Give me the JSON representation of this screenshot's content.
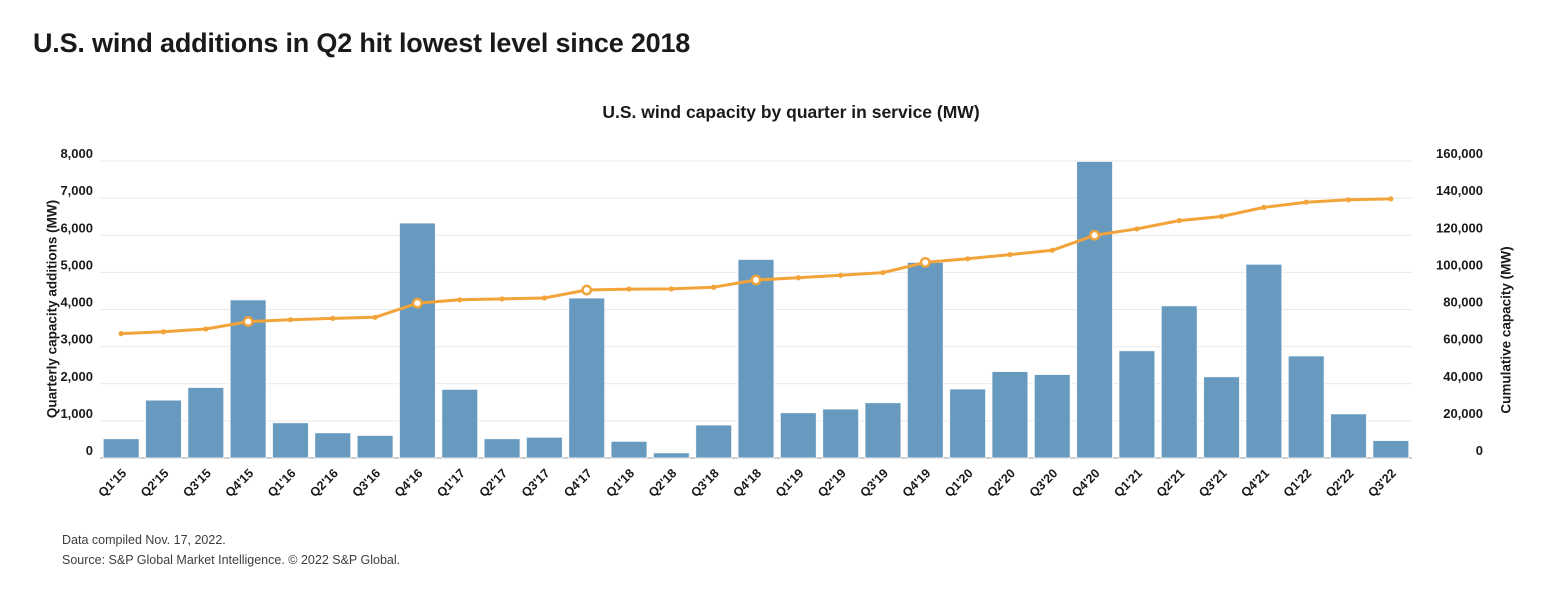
{
  "page": {
    "title": "U.S. wind additions in Q2 hit lowest level since 2018"
  },
  "chart_data": {
    "type": "bar",
    "subtype": "combo-bar-line-dual-axis",
    "title": "U.S. wind capacity by quarter in service (MW)",
    "grid": true,
    "legend_position": "none",
    "categories": [
      "Q1'15",
      "Q2'15",
      "Q3'15",
      "Q4'15",
      "Q1'16",
      "Q2'16",
      "Q3'16",
      "Q4'16",
      "Q1'17",
      "Q2'17",
      "Q3'17",
      "Q4'17",
      "Q1'18",
      "Q2'18",
      "Q3'18",
      "Q4'18",
      "Q1'19",
      "Q2'19",
      "Q3'19",
      "Q4'19",
      "Q1'20",
      "Q2'20",
      "Q3'20",
      "Q4'20",
      "Q1'21",
      "Q2'21",
      "Q3'21",
      "Q4'21",
      "Q1'22",
      "Q2'22",
      "Q3'22"
    ],
    "series": [
      {
        "name": "Quarterly capacity additions (MW)",
        "type": "bar",
        "axis": "left",
        "color": "#6899BE",
        "values": [
          520,
          1560,
          1900,
          4260,
          950,
          680,
          610,
          6330,
          1850,
          520,
          560,
          4310,
          450,
          140,
          890,
          5350,
          1220,
          1320,
          1490,
          5270,
          1860,
          2330,
          2250,
          7990,
          2890,
          4100,
          2190,
          5220,
          2750,
          1190,
          470
        ]
      },
      {
        "name": "Cumulative capacity (MW)",
        "type": "line",
        "axis": "right",
        "color": "#F2A43A",
        "values": [
          67000,
          68000,
          69500,
          73500,
          74500,
          75200,
          75800,
          83400,
          85200,
          85700,
          86200,
          90500,
          91000,
          91100,
          92000,
          95900,
          97100,
          98400,
          99900,
          105400,
          107300,
          109600,
          111900,
          120000,
          123400,
          127900,
          130100,
          135000,
          137800,
          139100,
          139600
        ],
        "ring_marker_indices": [
          3,
          7,
          11,
          15,
          19,
          23
        ]
      }
    ],
    "y_left": {
      "label": "Quarterly capacity additions (MW)",
      "min": 0,
      "max": 8000,
      "step": 1000,
      "tick_values": [
        0,
        1000,
        2000,
        3000,
        4000,
        5000,
        6000,
        7000,
        8000
      ],
      "ticks": [
        "0",
        "1,000",
        "2,000",
        "3,000",
        "4,000",
        "5,000",
        "6,000",
        "7,000",
        "8,000"
      ]
    },
    "y_right": {
      "label": "Cumulative capacity (MW)",
      "min": 0,
      "max": 160000,
      "step": 20000,
      "tick_values": [
        0,
        20000,
        40000,
        60000,
        80000,
        100000,
        120000,
        140000,
        160000
      ],
      "ticks": [
        "0",
        "20,000",
        "40,000",
        "60,000",
        "80,000",
        "100,000",
        "120,000",
        "140,000",
        "160,000"
      ]
    }
  },
  "footer": {
    "line1": "Data compiled Nov. 17, 2022.",
    "line2": "Source: S&P Global Market Intelligence. © 2022 S&P Global."
  },
  "colors": {
    "bar": "#6899BE",
    "line": "#F2A43A",
    "gridline": "#E9E9E9",
    "baseline": "#BDBDBD",
    "text": "#1a1a1a",
    "footer_text": "#3d3d3d"
  }
}
